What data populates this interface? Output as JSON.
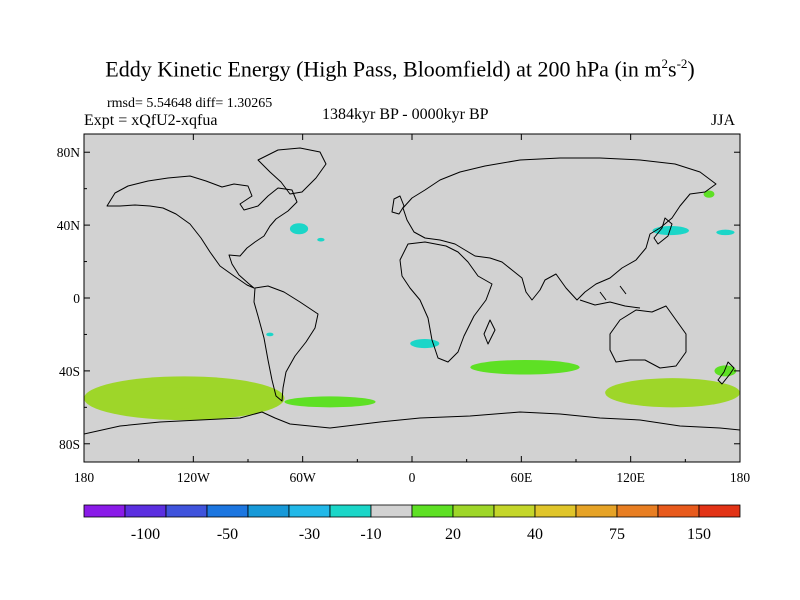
{
  "chart_data": {
    "type": "heatmap",
    "title_main": "Eddy Kinetic Energy (High Pass, Bloomfield) at 200 hPa (in m",
    "title_sup1": "2",
    "title_mid": "s",
    "title_sup2": "-2",
    "title_end": ")",
    "stats": "rmsd= 5.54648 diff= 1.30265",
    "experiment": "Expt = xQfU2-xqfua",
    "period": "1384kyr BP - 0000kyr BP",
    "season": "JJA",
    "x_range": [
      -180,
      180
    ],
    "y_range": [
      -90,
      90
    ],
    "x_ticks": [
      {
        "value": -180,
        "label": "180"
      },
      {
        "value": -120,
        "label": "120W"
      },
      {
        "value": -60,
        "label": "60W"
      },
      {
        "value": 0,
        "label": "0"
      },
      {
        "value": 60,
        "label": "60E"
      },
      {
        "value": 120,
        "label": "120E"
      },
      {
        "value": 180,
        "label": "180"
      }
    ],
    "y_ticks": [
      {
        "value": 80,
        "label": "80N"
      },
      {
        "value": 40,
        "label": "40N"
      },
      {
        "value": 0,
        "label": "0"
      },
      {
        "value": -40,
        "label": "40S"
      },
      {
        "value": -80,
        "label": "80S"
      }
    ],
    "background_color": "#d2d2d2",
    "colorbar": {
      "colors": [
        "#8a1be8",
        "#5b2fe0",
        "#3f53dc",
        "#1c76e0",
        "#1799d8",
        "#22b8e8",
        "#1bd6c8",
        "#d2d2d2",
        "#5ee024",
        "#9ed629",
        "#c4d62a",
        "#e0c52a",
        "#e6a327",
        "#e87e22",
        "#e85a1c",
        "#e23316"
      ],
      "labels": [
        {
          "boundary": 1.5,
          "label": "-100"
        },
        {
          "boundary": 3.5,
          "label": "-50"
        },
        {
          "boundary": 5.5,
          "label": "-30"
        },
        {
          "boundary": 7,
          "label": "-10"
        },
        {
          "boundary": 9,
          "label": "20"
        },
        {
          "boundary": 11,
          "label": "40"
        },
        {
          "boundary": 13,
          "label": "75"
        },
        {
          "boundary": 15,
          "label": "150"
        }
      ]
    },
    "anomalies": [
      {
        "name": "south-pacific-positive",
        "lon": -125,
        "lat": -55,
        "lon_half_width": 55,
        "lat_half_height": 12,
        "value": 20
      },
      {
        "name": "south-pacific-core",
        "lon": -132,
        "lat": -55,
        "lon_half_width": 22,
        "lat_half_height": 6,
        "value": 30
      },
      {
        "name": "south-america-tail",
        "lon": -45,
        "lat": -57,
        "lon_half_width": 25,
        "lat_half_height": 3,
        "value": 15
      },
      {
        "name": "south-indian-positive",
        "lon": 62,
        "lat": -38,
        "lon_half_width": 30,
        "lat_half_height": 4,
        "value": 15
      },
      {
        "name": "australia-south-positive",
        "lon": 143,
        "lat": -52,
        "lon_half_width": 37,
        "lat_half_height": 8,
        "value": 20
      },
      {
        "name": "new-zealand-positive",
        "lon": 172,
        "lat": -40,
        "lon_half_width": 6,
        "lat_half_height": 3,
        "value": 15
      },
      {
        "name": "kamchatka-positive",
        "lon": 163,
        "lat": 57,
        "lon_half_width": 3,
        "lat_half_height": 2,
        "value": 15
      },
      {
        "name": "gulf-stream-negative",
        "lon": -62,
        "lat": 38,
        "lon_half_width": 5,
        "lat_half_height": 3,
        "value": -15
      },
      {
        "name": "north-atlantic-negative",
        "lon": -50,
        "lat": 32,
        "lon_half_width": 2,
        "lat_half_height": 1,
        "value": -15
      },
      {
        "name": "japan-negative",
        "lon": 142,
        "lat": 37,
        "lon_half_width": 10,
        "lat_half_height": 2.5,
        "value": -15
      },
      {
        "name": "north-pacific-negative",
        "lon": 172,
        "lat": 36,
        "lon_half_width": 5,
        "lat_half_height": 1.5,
        "value": -15
      },
      {
        "name": "south-atlantic-negative",
        "lon": 7,
        "lat": -25,
        "lon_half_width": 8,
        "lat_half_height": 2.5,
        "value": -15
      },
      {
        "name": "south-pacific-small-negative",
        "lon": -78,
        "lat": -20,
        "lon_half_width": 2,
        "lat_half_height": 1,
        "value": -15
      }
    ]
  }
}
